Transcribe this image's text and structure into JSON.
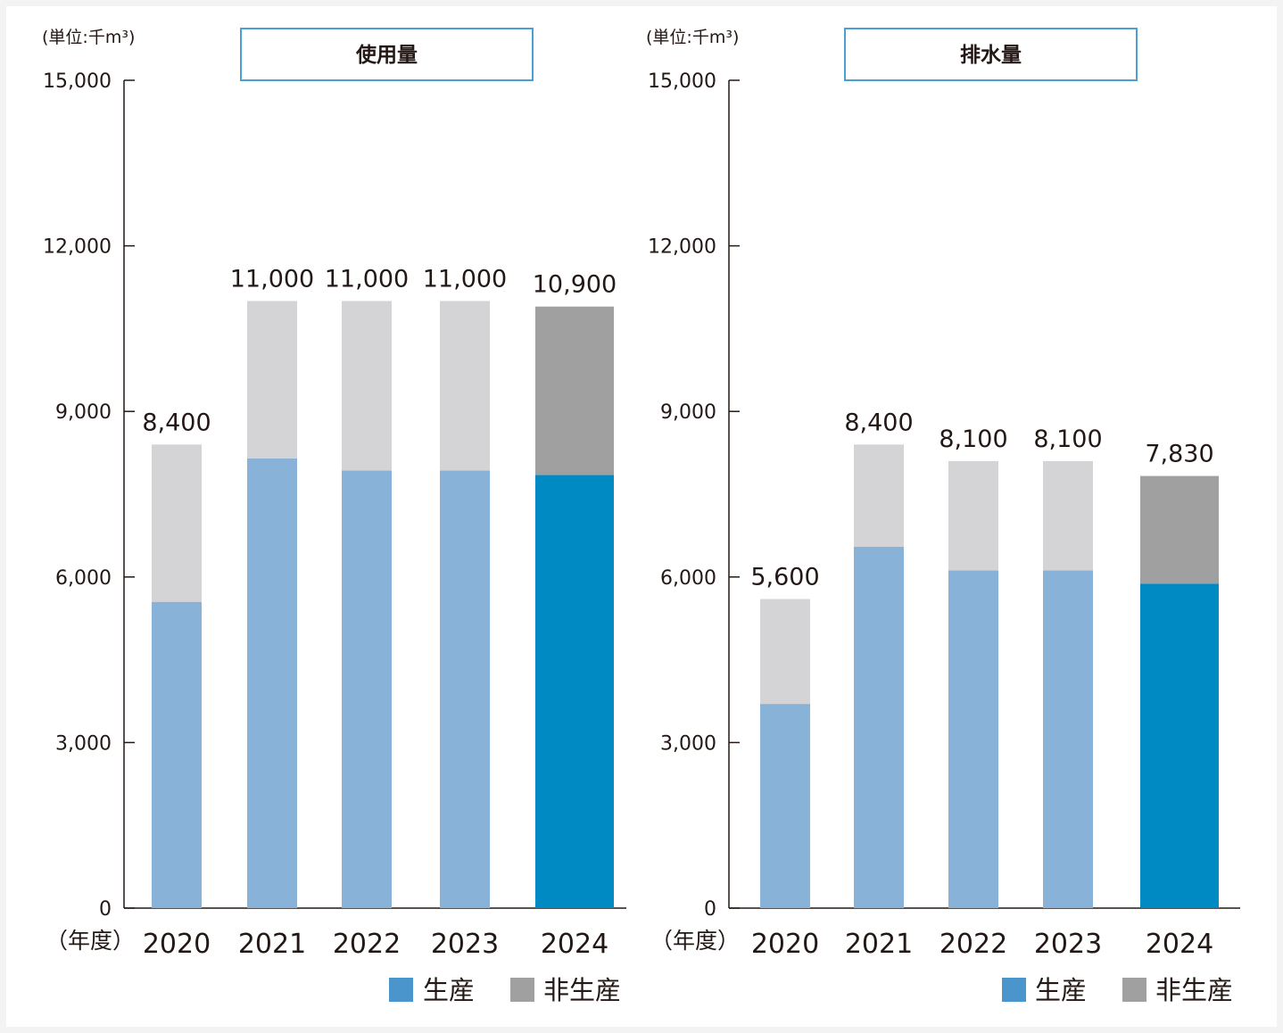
{
  "colors": {
    "production": "#89b2d9",
    "non_production": "#d4d4d6",
    "production_highlight": "#008ac4",
    "non_production_highlight": "#a0a0a0",
    "legend_production": "#4a96cc",
    "legend_non_production": "#a0a0a0",
    "title_border": "#4a9fd3",
    "axis": "#231815"
  },
  "chart_data": [
    {
      "type": "bar",
      "stacked": true,
      "title": "使用量",
      "unit_label": "(単位:千m³)",
      "x_unit": "（年度）",
      "categories": [
        "2020",
        "2021",
        "2022",
        "2023",
        "2024"
      ],
      "ylim": [
        0,
        15000
      ],
      "yticks": [
        "0",
        "3,000",
        "6,000",
        "9,000",
        "12,000",
        "15,000"
      ],
      "ytick_values": [
        0,
        3000,
        6000,
        9000,
        12000,
        15000
      ],
      "series": [
        {
          "name": "生産",
          "values": [
            5550,
            8150,
            7930,
            7930,
            7850
          ]
        },
        {
          "name": "非生産",
          "values": [
            2850,
            2850,
            3070,
            3070,
            3050
          ]
        }
      ],
      "totals": [
        8400,
        11000,
        11000,
        11000,
        10900
      ],
      "total_labels": [
        "8,400",
        "11,000",
        "11,000",
        "11,000",
        "10,900"
      ],
      "legend": [
        "生産",
        "非生産"
      ]
    },
    {
      "type": "bar",
      "stacked": true,
      "title": "排水量",
      "unit_label": "(単位:千m³)",
      "x_unit": "（年度）",
      "categories": [
        "2020",
        "2021",
        "2022",
        "2023",
        "2024"
      ],
      "ylim": [
        0,
        15000
      ],
      "yticks": [
        "0",
        "3,000",
        "6,000",
        "9,000",
        "12,000",
        "15,000"
      ],
      "ytick_values": [
        0,
        3000,
        6000,
        9000,
        12000,
        15000
      ],
      "series": [
        {
          "name": "生産",
          "values": [
            3700,
            6550,
            6120,
            6120,
            5880
          ]
        },
        {
          "name": "非生産",
          "values": [
            1900,
            1850,
            1980,
            1980,
            1950
          ]
        }
      ],
      "totals": [
        5600,
        8400,
        8100,
        8100,
        7830
      ],
      "total_labels": [
        "5,600",
        "8,400",
        "8,100",
        "8,100",
        "7,830"
      ],
      "legend": [
        "生産",
        "非生産"
      ]
    }
  ]
}
